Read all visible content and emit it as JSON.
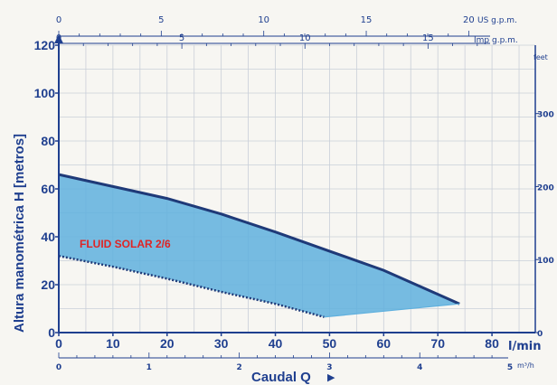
{
  "chart_data": {
    "type": "area",
    "ylabel": "Altura manométrica H [metros]",
    "xlabel": "Caudal Q",
    "series_label": "FLUID SOLAR 2/6",
    "x_lmin": {
      "unit": "l/min",
      "ticks": [
        0,
        10,
        20,
        30,
        40,
        50,
        60,
        70,
        80
      ],
      "range": [
        0,
        88
      ]
    },
    "x_m3h": {
      "unit": "m³/h",
      "ticks": [
        0,
        1,
        2,
        3,
        4,
        5
      ],
      "tick_labels": [
        "0",
        "1",
        "2",
        "3",
        "4",
        "5"
      ]
    },
    "x_us_gpm": {
      "unit": "US g.p.m.",
      "ticks": [
        0,
        5,
        10,
        15,
        20
      ],
      "tick_labels": [
        "0",
        "5",
        "10",
        "15",
        "20"
      ]
    },
    "x_imp_gpm": {
      "unit": "Imp g.p.m.",
      "ticks": [
        0,
        5,
        10,
        15
      ],
      "tick_labels": [
        "0",
        "5",
        "10",
        "15"
      ]
    },
    "y_m": {
      "range": [
        0,
        120
      ],
      "ticks": [
        0,
        20,
        40,
        60,
        80,
        100,
        120
      ],
      "tick_labels": [
        "0",
        "20",
        "40",
        "60",
        "80",
        "100",
        "120"
      ]
    },
    "y_feet": {
      "unit": "feet",
      "ticks": [
        0,
        100,
        200,
        300
      ],
      "tick_labels": [
        "0",
        "100",
        "200",
        "300"
      ]
    },
    "upper_curve": {
      "x": [
        0,
        10,
        20,
        30,
        40,
        50,
        60,
        70,
        74
      ],
      "y": [
        66,
        61,
        56,
        49.5,
        42,
        34,
        26,
        16,
        12
      ]
    },
    "lower_curve": {
      "x": [
        0,
        10,
        20,
        30,
        40,
        49
      ],
      "y": [
        32,
        27.5,
        22.5,
        17,
        12,
        6.5
      ]
    },
    "fill_color": "#5fb0de",
    "line_color": "#1f3a78",
    "text_color": "#1f3f8f",
    "label_color": "#e02424"
  }
}
